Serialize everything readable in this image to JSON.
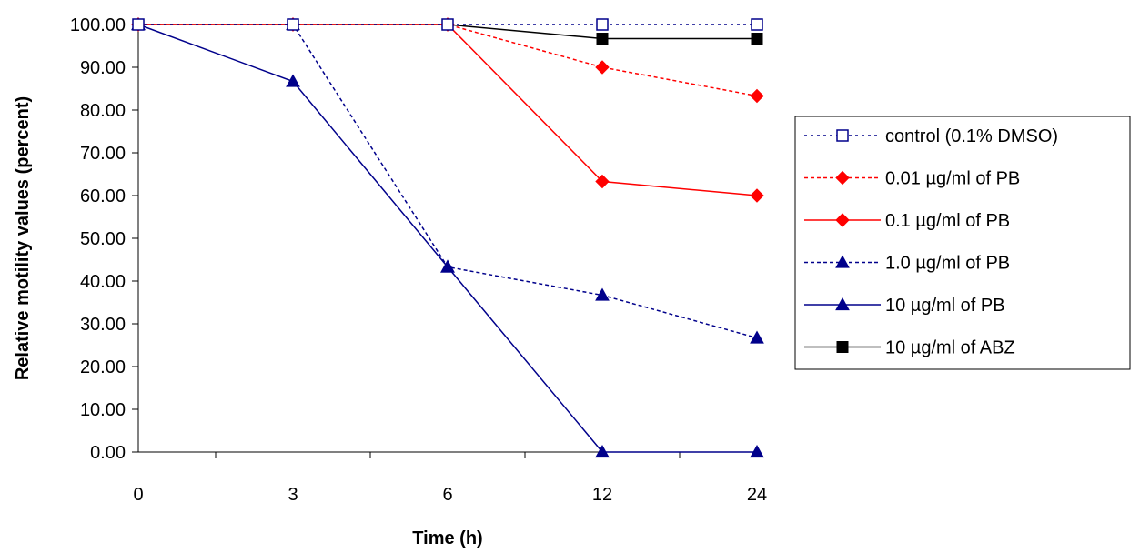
{
  "chart_data": {
    "type": "line",
    "title": "",
    "xlabel": "Time (h)",
    "ylabel": "Relative motility values (percent)",
    "categories": [
      "0",
      "3",
      "6",
      "12",
      "24"
    ],
    "ylim": [
      0,
      100
    ],
    "ytick_step": 10,
    "ytick_labels": [
      "0.00",
      "10.00",
      "20.00",
      "30.00",
      "40.00",
      "50.00",
      "60.00",
      "70.00",
      "80.00",
      "90.00",
      "100.00"
    ],
    "grid": false,
    "legend_position": "right",
    "series": [
      {
        "name": "control (0.1% DMSO)",
        "values": [
          100,
          100,
          100,
          100,
          100
        ],
        "color": "#00008b",
        "line_style": "dotted",
        "marker": "open-square"
      },
      {
        "name": "0.01 µg/ml of PB",
        "values": [
          100,
          100,
          100,
          90,
          83.3
        ],
        "color": "#ff0000",
        "line_style": "dashed",
        "marker": "diamond"
      },
      {
        "name": "0.1 µg/ml of PB",
        "values": [
          100,
          100,
          100,
          63.3,
          60
        ],
        "color": "#ff0000",
        "line_style": "solid",
        "marker": "diamond"
      },
      {
        "name": "1.0 µg/ml of PB",
        "values": [
          100,
          100,
          43.3,
          36.7,
          26.7
        ],
        "color": "#00008b",
        "line_style": "dashed",
        "marker": "triangle"
      },
      {
        "name": "10 µg/ml of PB",
        "values": [
          100,
          86.7,
          43.3,
          0,
          0
        ],
        "color": "#00008b",
        "line_style": "solid",
        "marker": "triangle"
      },
      {
        "name": "10 µg/ml of ABZ",
        "values": [
          100,
          100,
          100,
          96.7,
          96.7
        ],
        "color": "#000000",
        "line_style": "solid",
        "marker": "filled-square"
      }
    ]
  }
}
